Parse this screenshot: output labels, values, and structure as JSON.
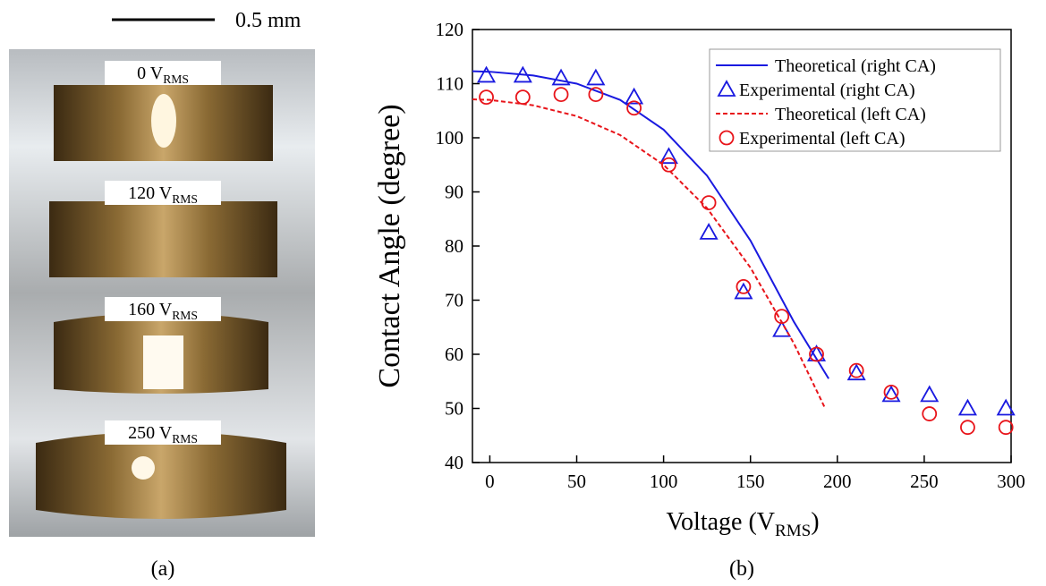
{
  "panel_a": {
    "scale_bar": "0.5 mm",
    "labels": [
      {
        "text": "0 V",
        "subscript": "RMS"
      },
      {
        "text": "120 V",
        "subscript": "RMS"
      },
      {
        "text": "160 V",
        "subscript": "RMS"
      },
      {
        "text": "250 V",
        "subscript": "RMS"
      }
    ],
    "caption": "(a)"
  },
  "chart_data": {
    "type": "line",
    "caption": "(b)",
    "x_label": {
      "text": "Voltage (V",
      "subscript": "RMS",
      "after": ")"
    },
    "y_label": "Contact Angle (degree)",
    "xlim": [
      -10,
      300
    ],
    "ylim": [
      40,
      120
    ],
    "xticks": [
      0,
      50,
      100,
      150,
      200,
      250,
      300
    ],
    "yticks": [
      40,
      50,
      60,
      70,
      80,
      90,
      100,
      110,
      120
    ],
    "legend": "upper right",
    "series": [
      {
        "name": "Theoretical (right CA)",
        "color": "#1a1ae0",
        "line_style": "solid",
        "x": [
          -10,
          0,
          25,
          50,
          75,
          100,
          125,
          150,
          175,
          195
        ],
        "values": [
          112.3,
          112.2,
          111.5,
          110,
          107,
          101.5,
          93,
          81,
          66,
          55.5
        ]
      },
      {
        "name": "Experimental (right CA)",
        "color": "#1a1ae0",
        "marker": "triangle",
        "x": [
          -2,
          19,
          41,
          61,
          83,
          103,
          126,
          146,
          168,
          188,
          211,
          231,
          253,
          275,
          297
        ],
        "values": [
          111.5,
          111.5,
          111,
          111,
          107.5,
          96.5,
          82.5,
          71.5,
          64.5,
          60,
          56.5,
          52.5,
          52.5,
          50,
          50
        ]
      },
      {
        "name": "Theoretical (left CA)",
        "color": "#e8141a",
        "line_style": "dashed",
        "x": [
          -10,
          0,
          25,
          50,
          75,
          100,
          125,
          150,
          175,
          193
        ],
        "values": [
          107.1,
          107,
          106,
          104,
          100.5,
          95,
          87,
          76,
          62,
          50
        ]
      },
      {
        "name": "Experimental (left CA)",
        "color": "#e8141a",
        "marker": "circle",
        "x": [
          -2,
          19,
          41,
          61,
          83,
          103,
          126,
          146,
          168,
          188,
          211,
          231,
          253,
          275,
          297
        ],
        "values": [
          107.5,
          107.5,
          108,
          108,
          105.5,
          95,
          88,
          72.5,
          67,
          60,
          57,
          53,
          49,
          46.5,
          46.5
        ]
      }
    ]
  }
}
